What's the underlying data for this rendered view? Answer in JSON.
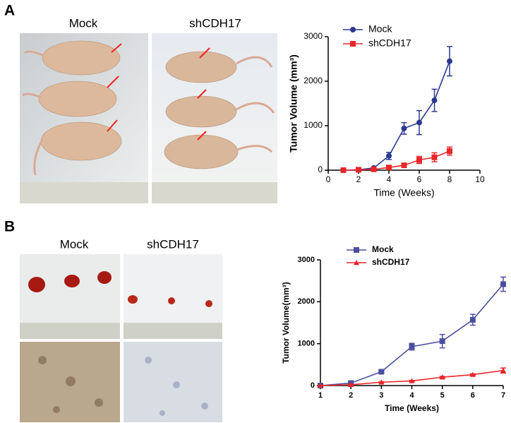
{
  "panel_labels": [
    "A",
    "B"
  ],
  "photo_labels": {
    "a": [
      "Mock",
      "shCDH17"
    ],
    "b": [
      "Mock",
      "shCDH17"
    ]
  },
  "chart_data": [
    {
      "type": "line",
      "x_label": "Time (Weeks)",
      "y_label": "Tumor Volume (mm³)",
      "xlim": [
        0,
        10
      ],
      "xticks": [
        0,
        2,
        4,
        6,
        8,
        10
      ],
      "ylim": [
        0,
        3000
      ],
      "yticks": [
        0,
        1000,
        2000,
        3000
      ],
      "x": [
        1,
        2,
        3,
        4,
        5,
        6,
        7,
        8
      ],
      "legend": "upper left",
      "series": [
        {
          "name": "Mock",
          "color": "#2b3990",
          "marker": "circle",
          "values": [
            0,
            10,
            50,
            320,
            940,
            1070,
            1570,
            2450
          ],
          "errors": [
            0,
            10,
            20,
            80,
            130,
            270,
            250,
            330
          ]
        },
        {
          "name": "shCDH17",
          "color": "#e8262b",
          "marker": "square",
          "values": [
            0,
            10,
            20,
            60,
            110,
            230,
            290,
            430
          ],
          "errors": [
            0,
            5,
            10,
            30,
            40,
            80,
            100,
            90
          ]
        }
      ]
    },
    {
      "type": "line",
      "x_label": "Time (Weeks)",
      "y_label": "Tumor Volume(mm³)",
      "xlim": [
        1,
        7
      ],
      "xticks": [
        1,
        2,
        3,
        4,
        5,
        6,
        7
      ],
      "ylim": [
        0,
        3000
      ],
      "yticks": [
        0,
        1000,
        2000,
        3000
      ],
      "x": [
        1,
        2,
        3,
        4,
        5,
        6,
        7
      ],
      "legend": "upper left",
      "series": [
        {
          "name": "Mock",
          "color": "#4b4f9e",
          "marker": "square",
          "values": [
            0,
            60,
            330,
            930,
            1060,
            1570,
            2420
          ],
          "errors": [
            0,
            20,
            20,
            80,
            160,
            130,
            170
          ]
        },
        {
          "name": "shCDH17",
          "color": "#e8262b",
          "marker": "triangle",
          "values": [
            0,
            20,
            80,
            110,
            200,
            260,
            360
          ],
          "errors": [
            0,
            5,
            10,
            15,
            20,
            20,
            60
          ]
        }
      ]
    }
  ]
}
